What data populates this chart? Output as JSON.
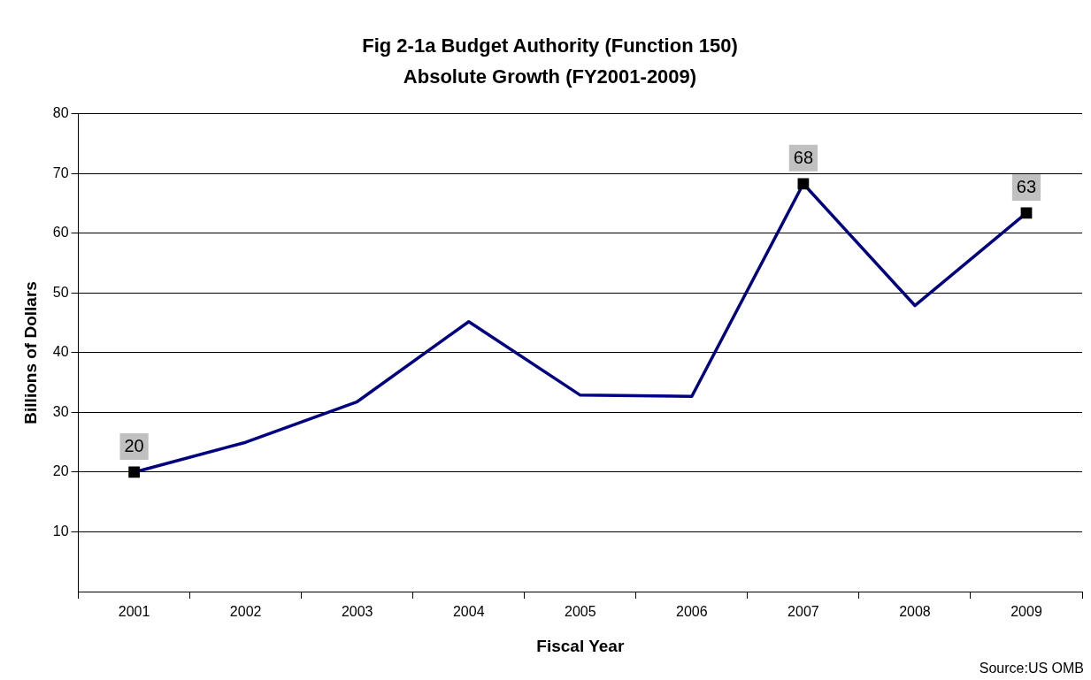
{
  "chart_data": {
    "type": "line",
    "title": "Fig 2-1a Budget Authority (Function 150)",
    "subtitle": "Absolute Growth (FY2001-2009)",
    "xlabel": "Fiscal Year",
    "ylabel": "Billions of Dollars",
    "categories": [
      "2001",
      "2002",
      "2003",
      "2004",
      "2005",
      "2006",
      "2007",
      "2008",
      "2009"
    ],
    "series": [
      {
        "color": "#000080",
        "marker": "none",
        "values": [
          20,
          25,
          31.8,
          45.2,
          32.9,
          32.7,
          68.3,
          47.9,
          63.4
        ]
      },
      {
        "type": "scatter",
        "color": "#000000",
        "marker": "square",
        "values": [
          20,
          null,
          null,
          null,
          null,
          null,
          68.3,
          null,
          63.4
        ],
        "value_labels": [
          "20",
          null,
          null,
          null,
          null,
          null,
          "68",
          null,
          "63"
        ]
      }
    ],
    "ylim": [
      0,
      80
    ],
    "yticks": [
      10,
      20,
      30,
      40,
      50,
      60,
      70,
      80
    ],
    "grid": "y",
    "legend": false,
    "annotations": [
      "Source:US OMB"
    ]
  }
}
